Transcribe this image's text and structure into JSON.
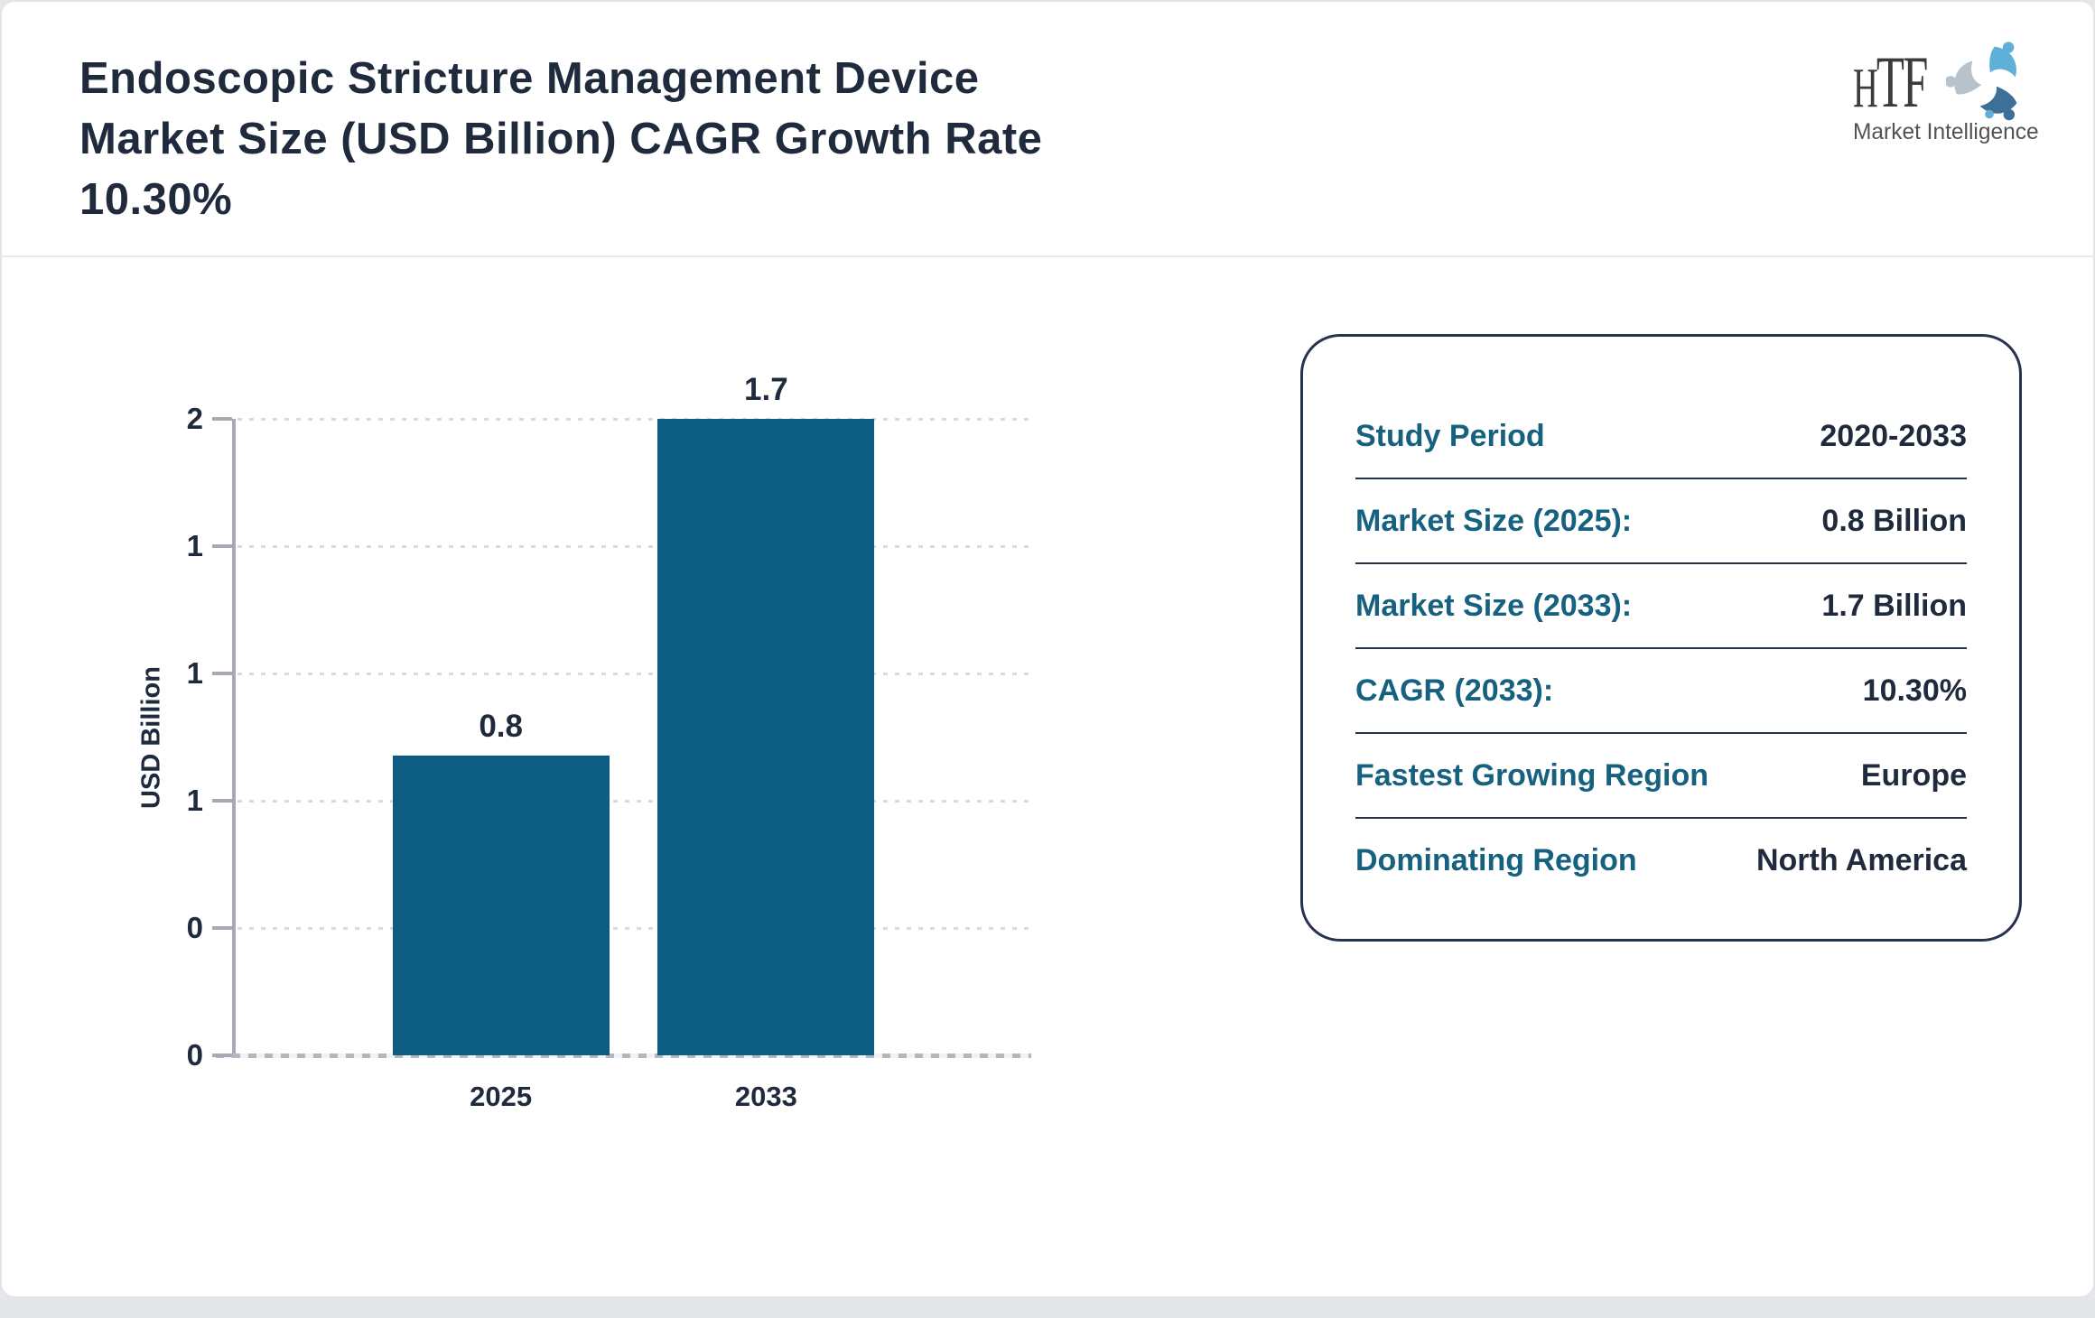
{
  "header": {
    "title": "Endoscopic Stricture Management Device Market Size (USD Billion) CAGR Growth Rate 10.30%",
    "title_lines": [
      "Endoscopic Stricture Management Device",
      "Market Size (USD Billion) CAGR Growth Rate",
      "10.30%"
    ],
    "logo": {
      "acronym": "HTF",
      "subtitle": "Market Intelligence",
      "icon": "triple-swirl-figures-icon"
    }
  },
  "chart_data": {
    "type": "bar",
    "categories": [
      "2025",
      "2033"
    ],
    "values": [
      0.8,
      1.7
    ],
    "bar_labels": [
      "0.8",
      "1.7"
    ],
    "title": "",
    "xlabel": "",
    "ylabel": "USD Billion",
    "ylim": [
      0,
      1.7
    ],
    "ytick_labels_top_to_bottom": [
      "2",
      "1",
      "1",
      "1",
      "0",
      "0"
    ],
    "grid": "horizontal-dotted",
    "legend": "none",
    "bar_color": "#0d5c82"
  },
  "panel": {
    "rows": [
      {
        "label": "Study Period",
        "value": "2020-2033"
      },
      {
        "label": "Market Size (2025):",
        "value": "0.8 Billion"
      },
      {
        "label": "Market Size (2033):",
        "value": "1.7 Billion"
      },
      {
        "label": "CAGR (2033):",
        "value": "10.30%"
      },
      {
        "label": "Fastest Growing Region",
        "value": "Europe"
      },
      {
        "label": "Dominating Region",
        "value": "North America"
      }
    ]
  },
  "colors": {
    "dark_navy": "#1f2b3d",
    "accent_teal": "#16617f",
    "bar": "#0d5c82",
    "axis_gray": "#a6aab2",
    "panel_border": "#27334c",
    "swirl_light_blue": "#5fb0d8",
    "swirl_steel_blue": "#3e6f99",
    "swirl_gray": "#b7c2ca"
  }
}
